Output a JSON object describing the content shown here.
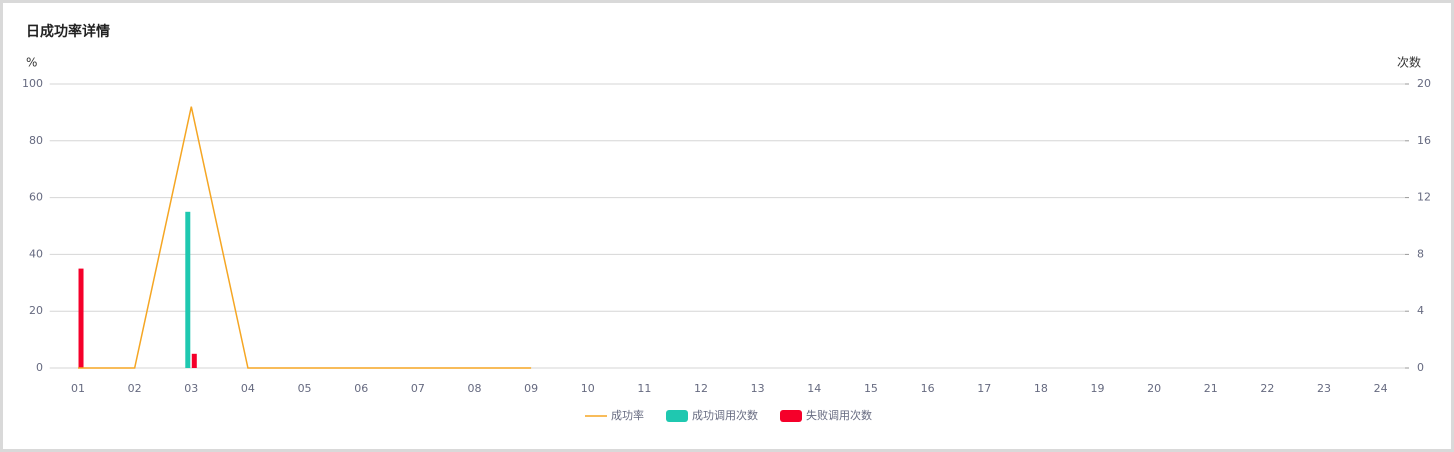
{
  "chart_data": {
    "type": "combo",
    "title": "日成功率详情",
    "y_label": "%",
    "y2_label": "次数",
    "categories": [
      "01",
      "02",
      "03",
      "04",
      "05",
      "06",
      "07",
      "08",
      "09",
      "10",
      "11",
      "12",
      "13",
      "14",
      "15",
      "16",
      "17",
      "18",
      "19",
      "20",
      "21",
      "22",
      "23",
      "24"
    ],
    "series": [
      {
        "name": "成功率",
        "type": "line",
        "color": "#f5a623",
        "values": [
          0,
          0,
          92,
          0,
          0,
          0,
          0,
          0,
          0,
          null,
          null,
          null,
          null,
          null,
          null,
          null,
          null,
          null,
          null,
          null,
          null,
          null,
          null,
          null
        ]
      },
      {
        "name": "成功调用次数",
        "type": "bar",
        "axis": "y2",
        "color": "#1fc8b0",
        "values": [
          0,
          0,
          11,
          0,
          0,
          0,
          0,
          0,
          0,
          null,
          null,
          null,
          null,
          null,
          null,
          null,
          null,
          null,
          null,
          null,
          null,
          null,
          null,
          null
        ]
      },
      {
        "name": "失败调用次数",
        "type": "bar",
        "axis": "y2",
        "color": "#f5002a",
        "values": [
          7,
          0,
          1,
          0,
          0,
          0,
          0,
          0,
          0,
          null,
          null,
          null,
          null,
          null,
          null,
          null,
          null,
          null,
          null,
          null,
          null,
          null,
          null,
          null
        ]
      }
    ],
    "ylim": [
      0,
      100
    ],
    "yticks": [
      0,
      20,
      40,
      60,
      80,
      100
    ],
    "y2lim": [
      0,
      20
    ],
    "y2ticks": [
      0,
      4,
      8,
      12,
      16,
      20
    ],
    "grid": true,
    "legend": "bottom"
  }
}
